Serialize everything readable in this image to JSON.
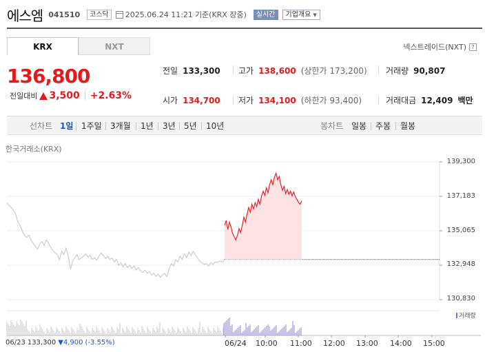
{
  "header": {
    "stock_name": "에스엠",
    "stock_code": "041510",
    "market_tag": "코스닥",
    "datetime": "2025.06.24 11:21",
    "basis": "기준(KRX 장중)",
    "live_badge": "실시간",
    "company_info": "기업개요"
  },
  "exchange_tabs": [
    {
      "label": "KRX",
      "active": true
    },
    {
      "label": "NXT",
      "active": false
    }
  ],
  "nxt_link": "넥스트레이드(NXT)",
  "price": {
    "current": "136,800",
    "change_label": "전일대비",
    "change_value": "3,500",
    "change_pct": "+2.63%"
  },
  "stats": {
    "prev_close_label": "전일",
    "prev_close": "133,300",
    "high_label": "고가",
    "high": "138,600",
    "upper_limit": "(상한가 173,200)",
    "volume_label": "거래량",
    "volume": "90,807",
    "open_label": "시가",
    "open": "134,700",
    "low_label": "저가",
    "low": "134,100",
    "lower_limit": "(하한가 93,400)",
    "amount_label": "거래대금",
    "amount": "12,409",
    "amount_unit": "백만"
  },
  "period_bar": {
    "line_label": "선차트",
    "line_periods": [
      "1일",
      "1주일",
      "3개월",
      "1년",
      "3년",
      "5년",
      "10년"
    ],
    "active_period": "1일",
    "candle_label": "봉차트",
    "candle_periods": [
      "일봉",
      "주봉",
      "월봉"
    ]
  },
  "chart_data": {
    "type": "line",
    "exchange_label": "한국거래소(KRX)",
    "y_ticks": [
      "139,300",
      "137,183",
      "135,065",
      "132,948",
      "130,830"
    ],
    "ylim": [
      130830,
      139300
    ],
    "x_ticks": [
      "06/24",
      "10:00",
      "11:00",
      "12:00",
      "13:00",
      "14:00",
      "15:00"
    ],
    "prev_close": 133300,
    "volume_label": "거래량",
    "prev_day": {
      "date": "06/23",
      "close": "133,300",
      "change": "▼4,900",
      "pct": "(-3.55%)"
    },
    "series": [
      {
        "values": [
          136800,
          136600,
          136500,
          136300,
          136100,
          135600,
          135400,
          135050,
          134800,
          134650,
          134800,
          134500,
          134300,
          134100,
          133950,
          134250,
          134400,
          134150,
          134500,
          134300,
          134050,
          133850,
          133700,
          133600,
          133300,
          133800,
          133600,
          134000,
          133500,
          132700,
          133200,
          133400,
          133600,
          133300,
          133400,
          133500,
          133650,
          133450,
          133550,
          133300,
          133400,
          133250,
          133500,
          133700,
          133550,
          133350,
          133500,
          133300,
          133400,
          133150,
          133300,
          132950,
          133100,
          132850,
          133050,
          132800,
          132950,
          132750,
          132900,
          132650,
          132800,
          132600,
          132500,
          132650,
          132450,
          132550,
          132350,
          132450,
          132250,
          132400,
          132200,
          132350,
          132450,
          132250,
          132700,
          133050,
          132900,
          133300,
          133150,
          133500,
          133300,
          133650,
          133400,
          133750,
          133550,
          133800,
          133600,
          133400,
          133200,
          133100,
          133000,
          133050,
          132900,
          133100,
          133000,
          133150,
          133100,
          133200,
          133150,
          133250
        ]
      },
      {
        "values": [
          135400,
          135700,
          135150,
          135600,
          135300,
          134900,
          134700,
          134500,
          134800,
          135200,
          134950,
          135400,
          135900,
          135600,
          136100,
          136500,
          136200,
          136700,
          136400,
          136800,
          136550,
          137000,
          136700,
          137200,
          137500,
          137250,
          137700,
          137400,
          137900,
          138200,
          137900,
          138350,
          138600,
          138200,
          138400,
          137900,
          137550,
          137800,
          137350,
          137600,
          137300,
          137500,
          137200,
          137450,
          137150,
          137000,
          136800,
          136700,
          136900
        ]
      }
    ]
  }
}
